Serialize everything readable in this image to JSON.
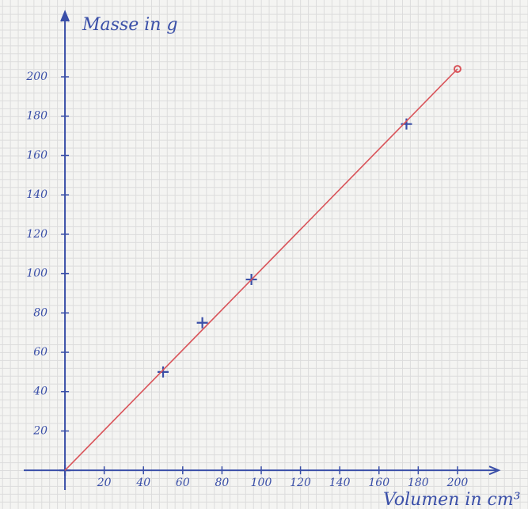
{
  "chart_data": {
    "type": "scatter",
    "title": "Masse in g",
    "x_label": "Volumen in cm³",
    "xlim": [
      -21,
      221
    ],
    "ylim": [
      -10,
      233
    ],
    "xticks": [
      20,
      40,
      60,
      80,
      100,
      120,
      140,
      160,
      180,
      200
    ],
    "yticks": [
      20,
      40,
      60,
      80,
      100,
      120,
      140,
      160,
      180,
      200
    ],
    "axis_color": "#3a4fa8",
    "series": [
      {
        "color": "#3a4fa8",
        "marker": "+",
        "x": [
          0,
          50,
          70,
          95,
          174
        ],
        "values": [
          0,
          50,
          75,
          97,
          176
        ]
      },
      {
        "color": "#d9545a",
        "marker": "line",
        "x": [
          0,
          200
        ],
        "values": [
          0,
          204
        ]
      }
    ]
  }
}
